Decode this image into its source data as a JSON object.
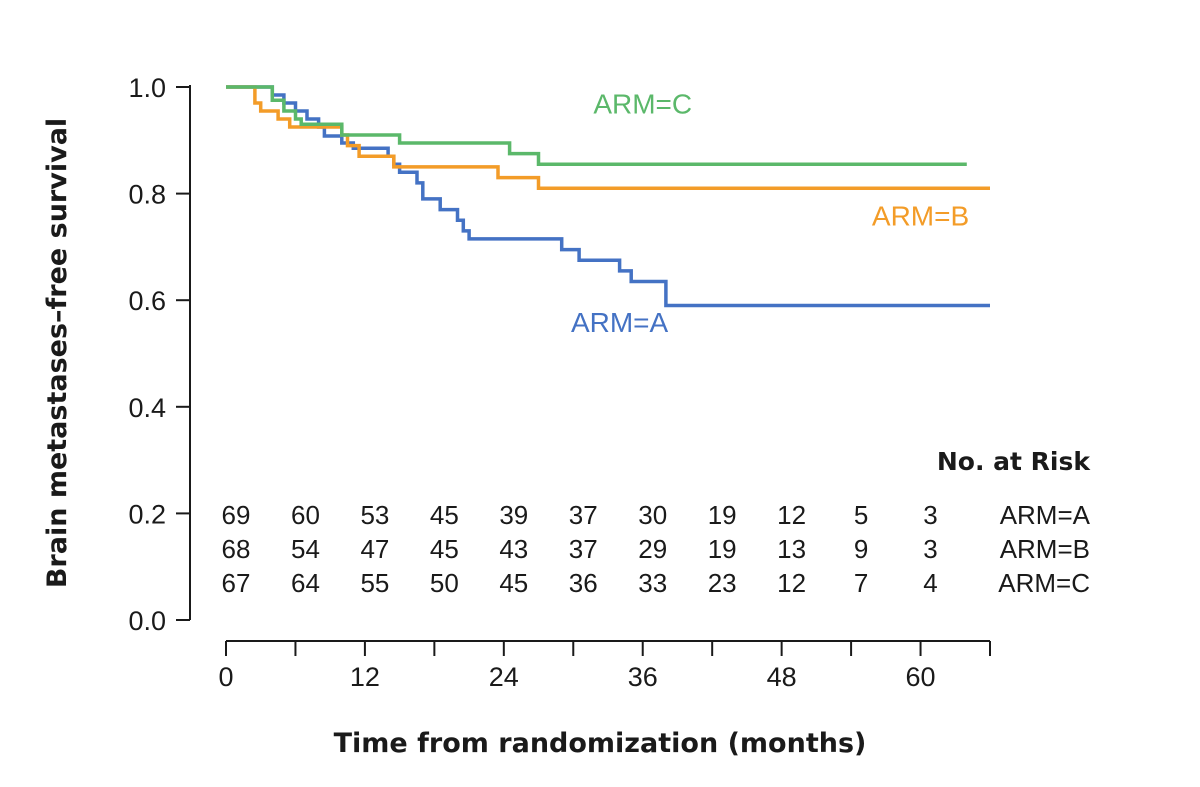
{
  "chart_data": {
    "type": "line",
    "step": true,
    "title": "",
    "xlabel": "Time from randomization (months)",
    "ylabel": "Brain metastases–free survival",
    "xlim": [
      0,
      66
    ],
    "ylim": [
      0,
      1
    ],
    "x_ticks": [
      0,
      12,
      24,
      36,
      48,
      60
    ],
    "x_tick_labels": [
      "0",
      "12",
      "24",
      "36",
      "48",
      "60"
    ],
    "x_minor_ticks": [
      6,
      18,
      30,
      42,
      54,
      66
    ],
    "y_ticks": [
      0,
      0.2,
      0.4,
      0.6,
      0.8,
      1.0
    ],
    "y_tick_labels": [
      "0.0",
      "0.2",
      "0.4",
      "0.6",
      "0.8",
      "1.0"
    ],
    "grid": false,
    "legend": "inline labels",
    "series": [
      {
        "name": "ARM=A",
        "color": "#4472c4",
        "points": [
          [
            0,
            1.0
          ],
          [
            4,
            1.0
          ],
          [
            4,
            0.985
          ],
          [
            5,
            0.985
          ],
          [
            5,
            0.97
          ],
          [
            6,
            0.97
          ],
          [
            6,
            0.955
          ],
          [
            7,
            0.955
          ],
          [
            7,
            0.94
          ],
          [
            8,
            0.94
          ],
          [
            8,
            0.925
          ],
          [
            8.5,
            0.925
          ],
          [
            8.5,
            0.908
          ],
          [
            10,
            0.908
          ],
          [
            10,
            0.895
          ],
          [
            11,
            0.895
          ],
          [
            11,
            0.885
          ],
          [
            14,
            0.885
          ],
          [
            14,
            0.87
          ],
          [
            14.5,
            0.87
          ],
          [
            14.5,
            0.855
          ],
          [
            15,
            0.855
          ],
          [
            15,
            0.84
          ],
          [
            16.5,
            0.84
          ],
          [
            16.5,
            0.82
          ],
          [
            17,
            0.82
          ],
          [
            17,
            0.79
          ],
          [
            18.5,
            0.79
          ],
          [
            18.5,
            0.77
          ],
          [
            20,
            0.77
          ],
          [
            20,
            0.75
          ],
          [
            20.5,
            0.75
          ],
          [
            20.5,
            0.73
          ],
          [
            21,
            0.73
          ],
          [
            21,
            0.715
          ],
          [
            29,
            0.715
          ],
          [
            29,
            0.695
          ],
          [
            30.5,
            0.695
          ],
          [
            30.5,
            0.675
          ],
          [
            34,
            0.675
          ],
          [
            34,
            0.655
          ],
          [
            35,
            0.655
          ],
          [
            35,
            0.635
          ],
          [
            38,
            0.635
          ],
          [
            38,
            0.59
          ],
          [
            66,
            0.59
          ]
        ]
      },
      {
        "name": "ARM=B",
        "color": "#f39c28",
        "points": [
          [
            0,
            1.0
          ],
          [
            2.5,
            1.0
          ],
          [
            2.5,
            0.97
          ],
          [
            3,
            0.97
          ],
          [
            3,
            0.955
          ],
          [
            4.5,
            0.955
          ],
          [
            4.5,
            0.94
          ],
          [
            5.5,
            0.94
          ],
          [
            5.5,
            0.925
          ],
          [
            10,
            0.925
          ],
          [
            10,
            0.91
          ],
          [
            10.5,
            0.91
          ],
          [
            10.5,
            0.89
          ],
          [
            11.5,
            0.89
          ],
          [
            11.5,
            0.87
          ],
          [
            14.5,
            0.87
          ],
          [
            14.5,
            0.85
          ],
          [
            23.5,
            0.85
          ],
          [
            23.5,
            0.83
          ],
          [
            27,
            0.83
          ],
          [
            27,
            0.81
          ],
          [
            66,
            0.81
          ]
        ]
      },
      {
        "name": "ARM=C",
        "color": "#5bb86a",
        "points": [
          [
            0,
            1.0
          ],
          [
            4,
            1.0
          ],
          [
            4,
            0.975
          ],
          [
            5,
            0.975
          ],
          [
            5,
            0.955
          ],
          [
            6,
            0.955
          ],
          [
            6,
            0.94
          ],
          [
            6.5,
            0.94
          ],
          [
            6.5,
            0.93
          ],
          [
            10,
            0.93
          ],
          [
            10,
            0.91
          ],
          [
            15,
            0.91
          ],
          [
            15,
            0.895
          ],
          [
            24.5,
            0.895
          ],
          [
            24.5,
            0.875
          ],
          [
            27,
            0.875
          ],
          [
            27,
            0.855
          ],
          [
            64,
            0.855
          ]
        ]
      }
    ],
    "annotations": [
      {
        "text": "ARM=C",
        "series": "ARM=C",
        "x": 36,
        "y": 0.95
      },
      {
        "text": "ARM=B",
        "series": "ARM=B",
        "x": 60,
        "y": 0.74
      },
      {
        "text": "ARM=A",
        "series": "ARM=A",
        "x": 34,
        "y": 0.54
      }
    ],
    "risk_table": {
      "title": "No. at Risk",
      "times": [
        0,
        6,
        12,
        18,
        24,
        30,
        36,
        42,
        48,
        54,
        60
      ],
      "rows": [
        {
          "label": "ARM=A",
          "values": [
            "69",
            "60",
            "53",
            "45",
            "39",
            "37",
            "30",
            "19",
            "12",
            "5",
            "3"
          ]
        },
        {
          "label": "ARM=B",
          "values": [
            "68",
            "54",
            "47",
            "45",
            "43",
            "37",
            "29",
            "19",
            "13",
            "9",
            "3"
          ]
        },
        {
          "label": "ARM=C",
          "values": [
            "67",
            "64",
            "55",
            "50",
            "45",
            "36",
            "33",
            "23",
            "12",
            "7",
            "4"
          ]
        }
      ]
    }
  }
}
